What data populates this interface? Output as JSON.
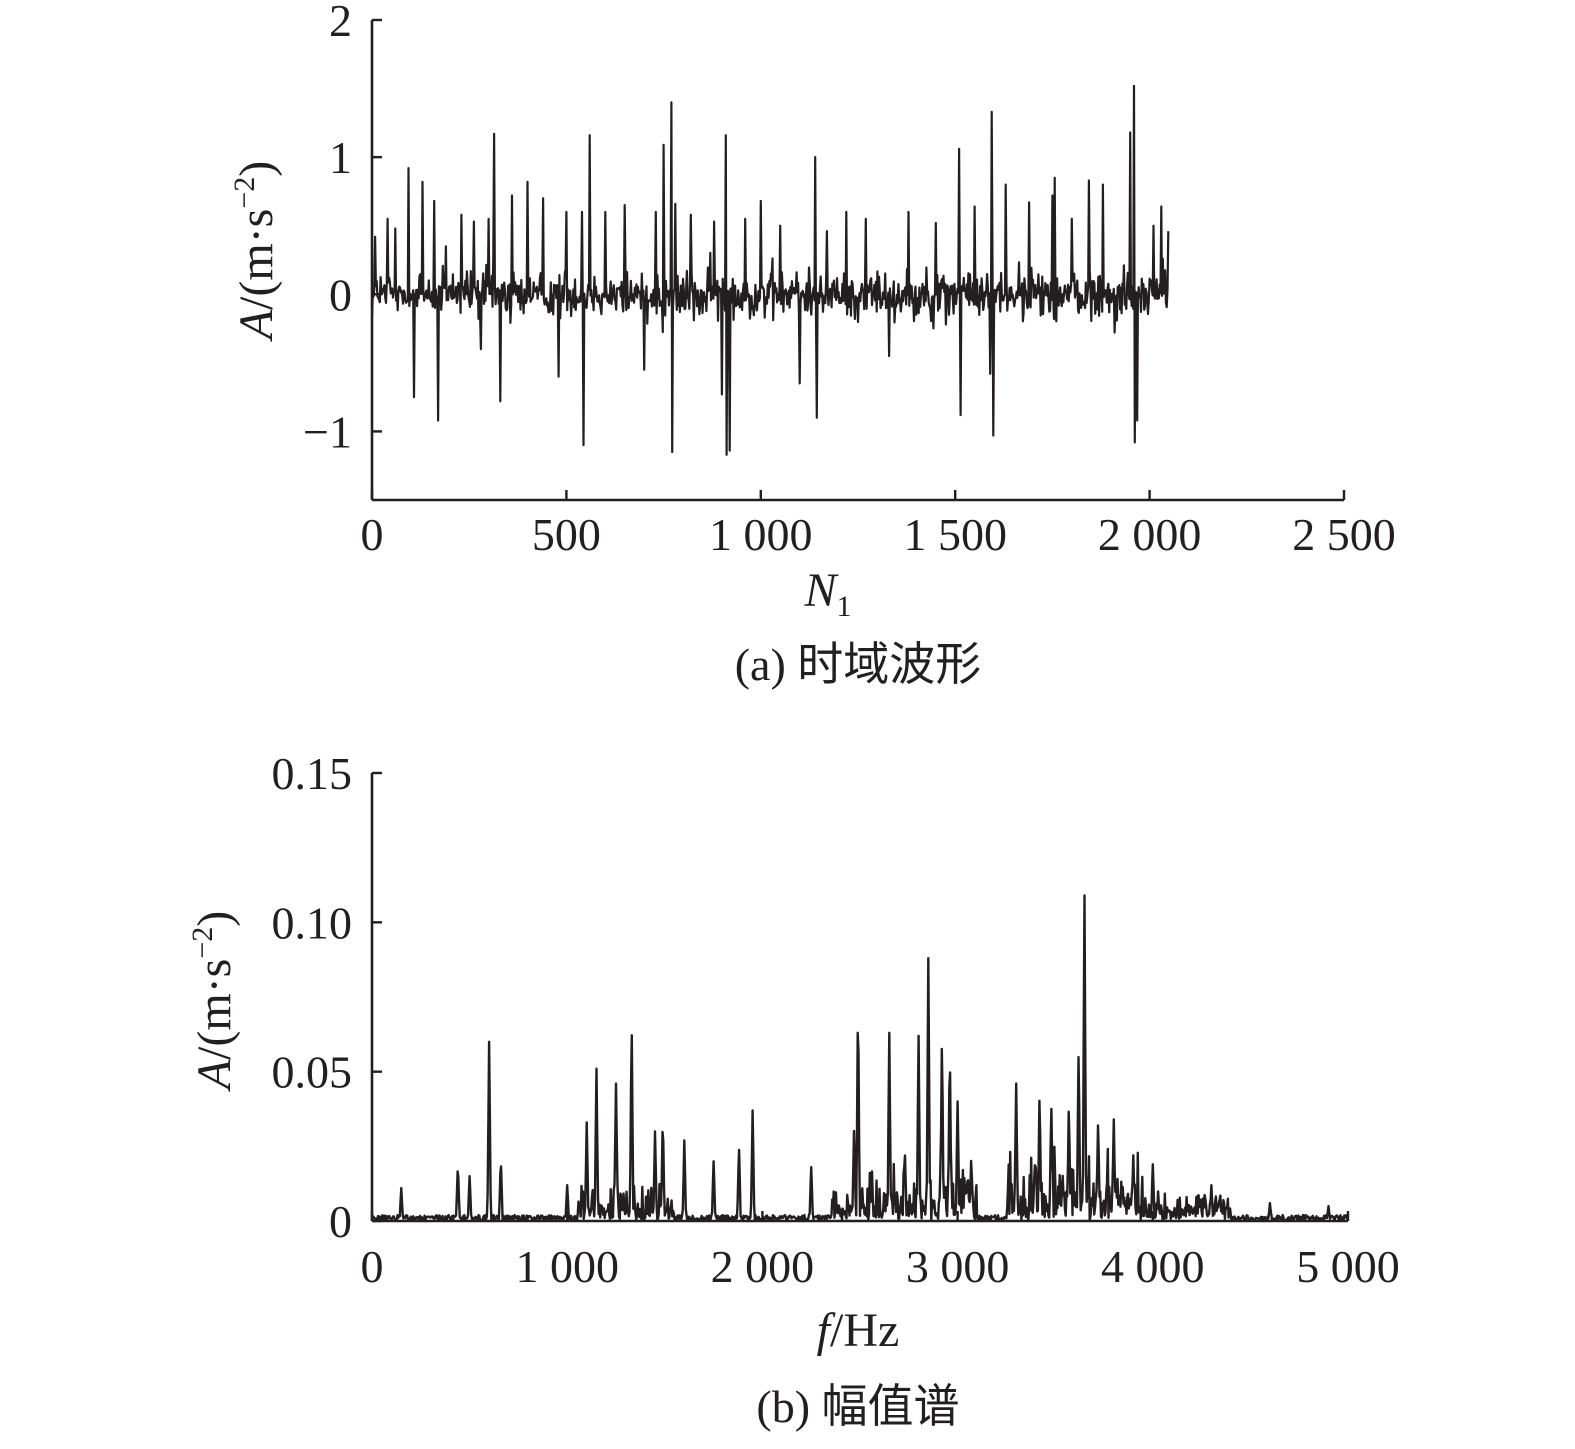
{
  "chart_data": [
    {
      "type": "line",
      "caption": "(a) 时域波形",
      "xlabel": {
        "var": "N",
        "sub": "1"
      },
      "ylabel": {
        "var": "A",
        "unit_open": "/(m·s",
        "sup": "−2",
        "unit_close": ")"
      },
      "xlim": [
        0,
        2500
      ],
      "ylim": [
        -1.5,
        2
      ],
      "xticks": [
        0,
        500,
        1000,
        1500,
        2000,
        2500
      ],
      "xtick_labels": [
        "0",
        "500",
        "1 000",
        "1 500",
        "2 000",
        "2 500"
      ],
      "yticks": [
        -1,
        0,
        1,
        2
      ],
      "ytick_labels": [
        "−1",
        "0",
        "1",
        "2"
      ],
      "grid": false,
      "series": [
        {
          "x_range": [
            0,
            2048
          ],
          "noise_amplitude": 0.25,
          "peaks": [
            [
              8,
              0.42
            ],
            [
              40,
              0.55
            ],
            [
              60,
              0.48
            ],
            [
              95,
              0.92
            ],
            [
              108,
              -0.75
            ],
            [
              130,
              0.82
            ],
            [
              160,
              0.68
            ],
            [
              170,
              -0.92
            ],
            [
              190,
              0.35
            ],
            [
              230,
              0.58
            ],
            [
              262,
              0.53
            ],
            [
              280,
              -0.4
            ],
            [
              300,
              0.55
            ],
            [
              315,
              1.17
            ],
            [
              330,
              -0.78
            ],
            [
              360,
              0.72
            ],
            [
              400,
              0.82
            ],
            [
              440,
              0.7
            ],
            [
              480,
              -0.6
            ],
            [
              500,
              0.6
            ],
            [
              540,
              0.6
            ],
            [
              545,
              -1.1
            ],
            [
              560,
              -0.6
            ],
            [
              560,
              1.16
            ],
            [
              600,
              0.6
            ],
            [
              650,
              0.65
            ],
            [
              700,
              -0.55
            ],
            [
              730,
              0.6
            ],
            [
              750,
              1.09
            ],
            [
              770,
              1.4
            ],
            [
              772,
              -1.15
            ],
            [
              780,
              0.66
            ],
            [
              820,
              0.58
            ],
            [
              880,
              0.53
            ],
            [
              900,
              -0.73
            ],
            [
              910,
              1.16
            ],
            [
              912,
              -1.17
            ],
            [
              920,
              -1.14
            ],
            [
              960,
              0.55
            ],
            [
              1000,
              0.68
            ],
            [
              1050,
              0.5
            ],
            [
              1100,
              -0.65
            ],
            [
              1140,
              1.0
            ],
            [
              1145,
              -0.9
            ],
            [
              1170,
              0.46
            ],
            [
              1220,
              0.6
            ],
            [
              1270,
              0.55
            ],
            [
              1330,
              -0.45
            ],
            [
              1380,
              0.6
            ],
            [
              1450,
              0.52
            ],
            [
              1510,
              1.06
            ],
            [
              1515,
              -0.88
            ],
            [
              1550,
              0.64
            ],
            [
              1590,
              -0.58
            ],
            [
              1595,
              1.33
            ],
            [
              1598,
              -1.03
            ],
            [
              1630,
              0.8
            ],
            [
              1690,
              0.67
            ],
            [
              1750,
              0.72
            ],
            [
              1757,
              0.85
            ],
            [
              1800,
              0.55
            ],
            [
              1845,
              0.83
            ],
            [
              1880,
              0.8
            ],
            [
              1950,
              1.18
            ],
            [
              1960,
              1.52
            ],
            [
              1962,
              -1.08
            ],
            [
              1968,
              -0.92
            ],
            [
              2010,
              0.5
            ],
            [
              2030,
              0.64
            ],
            [
              2048,
              0.46
            ]
          ]
        }
      ]
    },
    {
      "type": "line",
      "caption": "(b) 幅值谱",
      "xlabel": {
        "var": "f",
        "unit": "/Hz"
      },
      "ylabel": {
        "var": "A",
        "unit_open": "/(m·s",
        "sup": "−2",
        "unit_close": ")"
      },
      "xlim": [
        0,
        5000
      ],
      "ylim": [
        0,
        0.15
      ],
      "xticks": [
        0,
        1000,
        2000,
        3000,
        4000,
        5000
      ],
      "xtick_labels": [
        "0",
        "1 000",
        "2 000",
        "3 000",
        "4 000",
        "5 000"
      ],
      "yticks": [
        0,
        0.05,
        0.1,
        0.15
      ],
      "ytick_labels": [
        "0",
        "0.05",
        "0.10",
        "0.15"
      ],
      "grid": false,
      "series": [
        {
          "x_range": [
            0,
            5000
          ],
          "peaks": [
            [
              150,
              0.011
            ],
            [
              440,
              0.02
            ],
            [
              500,
              0.015
            ],
            [
              600,
              0.06
            ],
            [
              660,
              0.022
            ],
            [
              1000,
              0.012
            ],
            [
              1100,
              0.033
            ],
            [
              1150,
              0.051
            ],
            [
              1250,
              0.046
            ],
            [
              1330,
              0.068
            ],
            [
              1450,
              0.03
            ],
            [
              1490,
              0.036
            ],
            [
              1600,
              0.027
            ],
            [
              1750,
              0.02
            ],
            [
              1880,
              0.026
            ],
            [
              1950,
              0.037
            ],
            [
              2250,
              0.018
            ],
            [
              2470,
              0.033
            ],
            [
              2490,
              0.076
            ],
            [
              2560,
              0.02
            ],
            [
              2650,
              0.063
            ],
            [
              2730,
              0.024
            ],
            [
              2800,
              0.062
            ],
            [
              2850,
              0.088
            ],
            [
              2920,
              0.063
            ],
            [
              2960,
              0.06
            ],
            [
              3000,
              0.04
            ],
            [
              3070,
              0.022
            ],
            [
              3300,
              0.046
            ],
            [
              3420,
              0.044
            ],
            [
              3480,
              0.041
            ],
            [
              3570,
              0.04
            ],
            [
              3620,
              0.06
            ],
            [
              3650,
              0.109
            ],
            [
              3720,
              0.035
            ],
            [
              3800,
              0.034
            ],
            [
              3900,
              0.022
            ],
            [
              4000,
              0.019
            ],
            [
              4300,
              0.012
            ],
            [
              4600,
              0.006
            ],
            [
              4900,
              0.005
            ]
          ]
        }
      ]
    }
  ]
}
